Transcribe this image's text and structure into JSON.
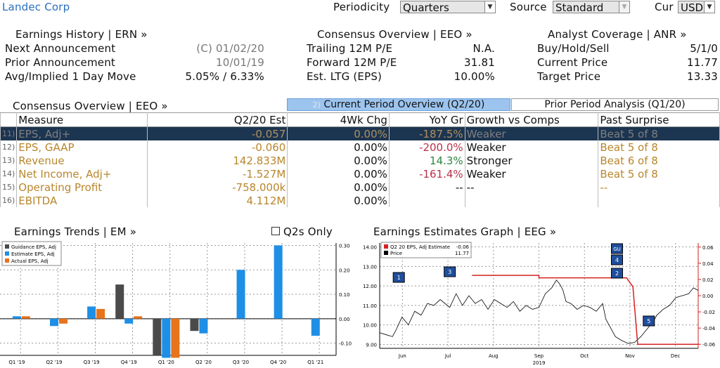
{
  "header": {
    "company": "Landec Corp",
    "periodicity_label": "Periodicity",
    "periodicity_value": "Quarters",
    "source_label": "Source",
    "source_value": "Standard",
    "cur_label": "Cur",
    "cur_value": "USD"
  },
  "earnings_history": {
    "title": "Earnings History | ERN »",
    "rows": [
      {
        "label": "Next Announcement",
        "value": "(C)  01/02/20"
      },
      {
        "label": "Prior Announcement",
        "value": "10/01/19"
      },
      {
        "label": "Avg/Implied 1 Day Move",
        "value": "5.05% / 6.33%"
      }
    ]
  },
  "consensus_overview_top": {
    "title": "Consensus Overview | EEO »",
    "rows": [
      {
        "label": "Trailing 12M P/E",
        "value": "N.A."
      },
      {
        "label": "Forward 12M P/E",
        "value": "31.81"
      },
      {
        "label": "Est. LTG (EPS)",
        "value": "10.00%"
      }
    ]
  },
  "analyst_coverage": {
    "title": "Analyst Coverage | ANR »",
    "rows": [
      {
        "label": "Buy/Hold/Sell",
        "value": "5/1/0"
      },
      {
        "label": "Current Price",
        "value": "11.77"
      },
      {
        "label": "Target Price",
        "value": "13.33"
      }
    ]
  },
  "consensus_table": {
    "title": "Consensus Overview | EEO »",
    "tab_current_prefix": "2)",
    "tab_current": "Current Period Overview (Q2/20)",
    "tab_prior": "Prior Period Analysis (Q1/20)",
    "columns": [
      "Measure",
      "Q2/20 Est",
      "4Wk Chg",
      "YoY Gr",
      "Growth vs Comps",
      "Past Surprise"
    ],
    "rows": [
      {
        "idx": "11)",
        "measure": "EPS, Adj+",
        "est": "-0.057",
        "chg": "0.00%",
        "yoy": "-187.5%",
        "yoy_color": "red",
        "growth": "Weaker",
        "surprise": "Beat 5 of 8"
      },
      {
        "idx": "12)",
        "measure": "EPS, GAAP",
        "est": "-0.060",
        "chg": "0.00%",
        "yoy": "-200.0%",
        "yoy_color": "red",
        "growth": "Weaker",
        "surprise": "Beat 5 of 8"
      },
      {
        "idx": "13)",
        "measure": "Revenue",
        "est": "142.833M",
        "chg": "0.00%",
        "yoy": "14.3%",
        "yoy_color": "green",
        "growth": "Stronger",
        "surprise": "Beat 6 of 8"
      },
      {
        "idx": "14)",
        "measure": "Net Income, Adj+",
        "est": "-1.527M",
        "chg": "0.00%",
        "yoy": "-161.4%",
        "yoy_color": "red",
        "growth": "Weaker",
        "surprise": "Beat 5 of 8"
      },
      {
        "idx": "15)",
        "measure": "Operating Profit",
        "est": "-758.000k",
        "chg": "0.00%",
        "yoy": "--",
        "yoy_color": "plain",
        "growth": "--",
        "surprise": "--"
      },
      {
        "idx": "16)",
        "measure": "EBITDA",
        "est": "4.112M",
        "chg": "0.00%",
        "yoy": "",
        "yoy_color": "plain",
        "growth": "",
        "surprise": ""
      }
    ]
  },
  "earnings_trends": {
    "title": "Earnings Trends | EM »",
    "q2s_only_label": "Q2s Only"
  },
  "earnings_estimates_graph": {
    "title": "Earnings Estimates Graph | EEG »"
  },
  "colors": {
    "guidance": "#4a4a4a",
    "estimate": "#1e8fe6",
    "actual": "#e8731a",
    "estimate_line": "#d62020",
    "price_line": "#000000",
    "selected_row": "#1c3551"
  },
  "chart_data": [
    {
      "type": "bar",
      "categories": [
        "Q1 '19",
        "Q2 '19",
        "Q3 '19",
        "Q4 '19",
        "Q1 '20",
        "Q2 '20",
        "Q3 '20",
        "Q4 '20",
        "Q1 '21"
      ],
      "series": [
        {
          "name": "Guidance EPS, Adj",
          "values": [
            null,
            null,
            null,
            0.14,
            -0.15,
            -0.05,
            null,
            null,
            null
          ]
        },
        {
          "name": "Estimate EPS, Adj",
          "values": [
            0.01,
            -0.03,
            0.05,
            -0.02,
            -0.16,
            -0.06,
            0.2,
            0.3,
            -0.07
          ]
        },
        {
          "name": "Actual EPS, Adj",
          "values": [
            0.01,
            -0.02,
            0.04,
            0.01,
            -0.16,
            null,
            null,
            null,
            null
          ]
        }
      ],
      "ylim": [
        -0.15,
        0.31
      ],
      "yticks": [
        "0.30",
        "0.20",
        "0.10",
        "0.00",
        "-0.10"
      ],
      "legend": "top-left"
    },
    {
      "type": "line",
      "x_labels": [
        "Jun",
        "Jul",
        "Aug",
        "Sep",
        "Oct",
        "Nov",
        "Dec"
      ],
      "year_label": "2019",
      "left_ticks": [
        "14.00",
        "13.00",
        "12.00",
        "11.00",
        "10.00",
        "9.00"
      ],
      "right_ticks": [
        "0.06",
        "0.04",
        "0.02",
        "0.00",
        "-0.02",
        "-0.04",
        "-0.06"
      ],
      "series": [
        {
          "name": "Q2 20 EPS, Adj Estimate",
          "legend_value": "-0.06",
          "axis": "right",
          "points": [
            [
              0.29,
              0.025
            ],
            [
              0.5,
              0.025
            ],
            [
              0.5,
              0.022
            ],
            [
              0.775,
              0.022
            ],
            [
              0.795,
              0.011
            ],
            [
              0.81,
              -0.06
            ],
            [
              1.0,
              -0.06
            ]
          ]
        },
        {
          "name": "Price",
          "legend_value": "11.77",
          "axis": "left",
          "points": [
            [
              0,
              9.6
            ],
            [
              0.02,
              9.5
            ],
            [
              0.04,
              9.4
            ],
            [
              0.05,
              9.7
            ],
            [
              0.07,
              10.4
            ],
            [
              0.09,
              10.0
            ],
            [
              0.11,
              10.7
            ],
            [
              0.13,
              10.5
            ],
            [
              0.15,
              11.1
            ],
            [
              0.17,
              11.0
            ],
            [
              0.19,
              11.3
            ],
            [
              0.22,
              10.9
            ],
            [
              0.24,
              11.6
            ],
            [
              0.26,
              11.0
            ],
            [
              0.28,
              11.5
            ],
            [
              0.3,
              11.1
            ],
            [
              0.32,
              11.3
            ],
            [
              0.34,
              10.8
            ],
            [
              0.36,
              11.3
            ],
            [
              0.38,
              11.1
            ],
            [
              0.4,
              10.9
            ],
            [
              0.42,
              11.2
            ],
            [
              0.44,
              10.7
            ],
            [
              0.46,
              11.0
            ],
            [
              0.48,
              10.8
            ],
            [
              0.5,
              10.9
            ],
            [
              0.52,
              11.6
            ],
            [
              0.54,
              11.9
            ],
            [
              0.555,
              12.3
            ],
            [
              0.565,
              12.1
            ],
            [
              0.575,
              11.8
            ],
            [
              0.585,
              11.2
            ],
            [
              0.6,
              11.1
            ],
            [
              0.62,
              10.8
            ],
            [
              0.64,
              11.0
            ],
            [
              0.66,
              10.9
            ],
            [
              0.68,
              10.7
            ],
            [
              0.7,
              11.1
            ],
            [
              0.71,
              10.3
            ],
            [
              0.72,
              10.0
            ],
            [
              0.74,
              9.4
            ],
            [
              0.76,
              9.2
            ],
            [
              0.78,
              9.05
            ],
            [
              0.8,
              9.1
            ],
            [
              0.82,
              9.4
            ],
            [
              0.84,
              9.8
            ],
            [
              0.86,
              10.2
            ],
            [
              0.87,
              10.5
            ],
            [
              0.89,
              10.8
            ],
            [
              0.91,
              11.0
            ],
            [
              0.93,
              11.4
            ],
            [
              0.95,
              11.5
            ],
            [
              0.97,
              11.6
            ],
            [
              0.985,
              11.9
            ],
            [
              1.0,
              11.77
            ]
          ]
        }
      ],
      "event_markers": [
        {
          "label": "1",
          "x": 0.06
        },
        {
          "label": "3",
          "x": 0.22
        },
        {
          "label": "GU",
          "x": 0.745
        },
        {
          "label": "4",
          "x": 0.745
        },
        {
          "label": "2",
          "x": 0.745
        },
        {
          "label": "5",
          "x": 0.845
        }
      ],
      "ylim_left": [
        8.8,
        14.2
      ],
      "ylim_right": [
        -0.065,
        0.065
      ],
      "legend": "top-left"
    }
  ]
}
